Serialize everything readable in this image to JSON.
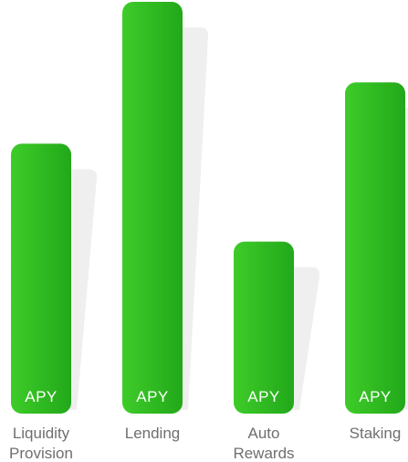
{
  "chart_data": {
    "type": "bar",
    "title": "",
    "xlabel": "",
    "ylabel": "",
    "categories": [
      [
        "Liquidity",
        "Provision"
      ],
      [
        "Lending"
      ],
      [
        "Auto",
        "Rewards"
      ],
      [
        "Staking"
      ]
    ],
    "values": [
      295,
      450,
      188,
      362
    ],
    "bar_label": "APY",
    "ylim": [
      0,
      450
    ],
    "grid": false,
    "legend": "none",
    "colors": {
      "bar_start": "#3ecc29",
      "bar_end": "#22a81a",
      "shadow": "#efefef",
      "label_text": "#6f6f6f",
      "bar_text": "#ffffff"
    }
  }
}
